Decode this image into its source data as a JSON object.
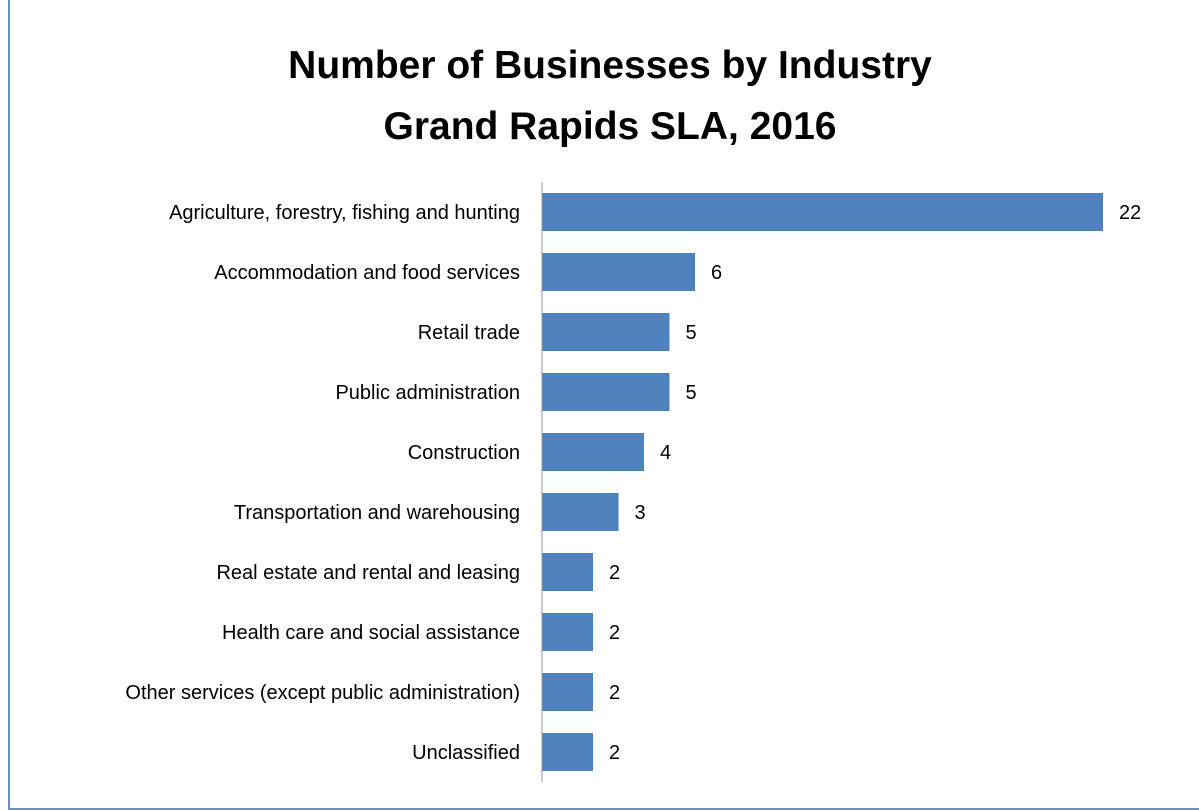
{
  "chart_data": {
    "type": "bar",
    "orientation": "horizontal",
    "title": "Number of Businesses by Industry",
    "subtitle": "Grand Rapids SLA, 2016",
    "xlabel": "",
    "ylabel": "",
    "xlim": [
      0,
      24
    ],
    "grid": false,
    "legend": "none",
    "bar_color": "#4f81bd",
    "categories": [
      "Agriculture, forestry, fishing and hunting",
      "Accommodation and food services",
      "Retail trade",
      "Public administration",
      "Construction",
      "Transportation and warehousing",
      "Real estate and rental and leasing",
      "Health care and social assistance",
      "Other services (except public administration)",
      "Unclassified"
    ],
    "values": [
      22,
      6,
      5,
      5,
      4,
      3,
      2,
      2,
      2,
      2
    ],
    "data_labels": [
      "22",
      "6",
      "5",
      "5",
      "4",
      "3",
      "2",
      "2",
      "2",
      "2"
    ]
  }
}
